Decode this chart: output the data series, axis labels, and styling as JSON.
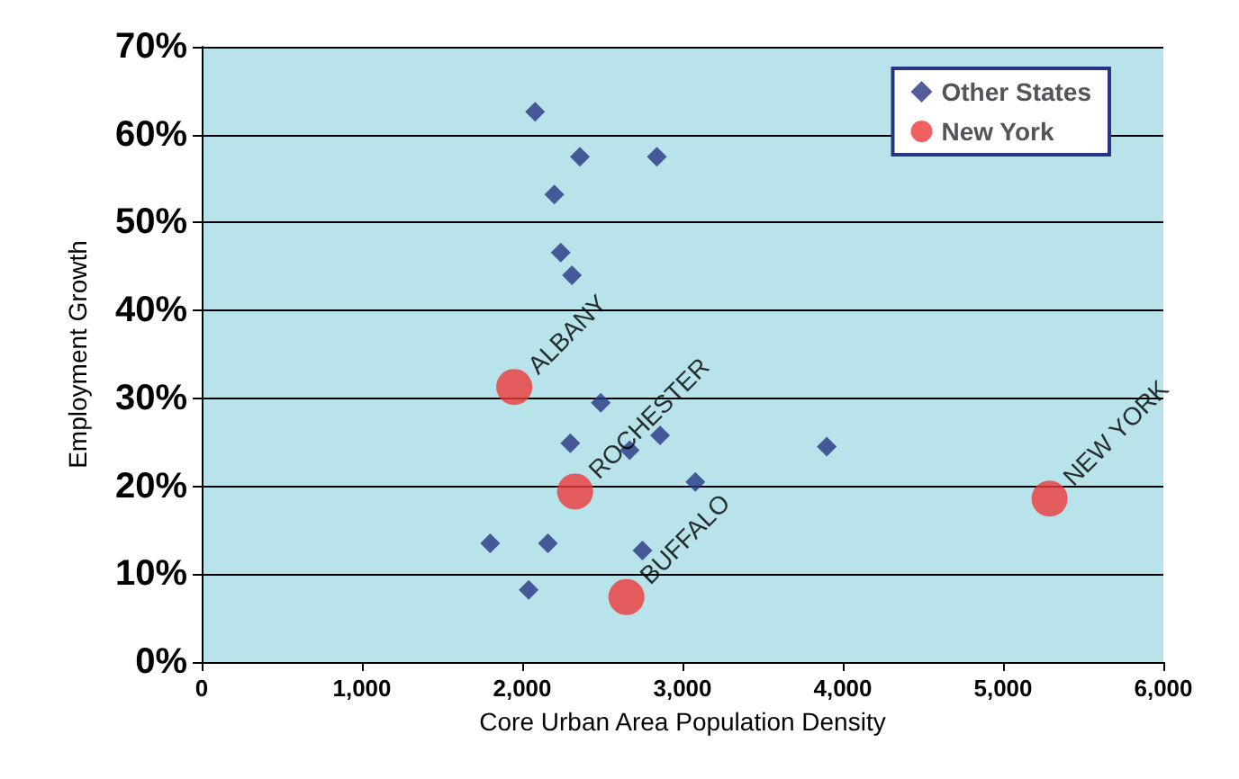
{
  "chart_data": {
    "type": "scatter",
    "xlabel": "Core Urban Area Population Density",
    "ylabel": "Employment Growth",
    "xlim": [
      0,
      6000
    ],
    "xticks": [
      {
        "value": 0,
        "label": "0"
      },
      {
        "value": 1000,
        "label": "1,000"
      },
      {
        "value": 2000,
        "label": "2,000"
      },
      {
        "value": 3000,
        "label": "3,000"
      },
      {
        "value": 4000,
        "label": "4,000"
      },
      {
        "value": 5000,
        "label": "5,000"
      },
      {
        "value": 6000,
        "label": "6,000"
      }
    ],
    "ylim": [
      0,
      70
    ],
    "yticks": [
      {
        "value": 0,
        "label": "0%"
      },
      {
        "value": 10,
        "label": "10%"
      },
      {
        "value": 20,
        "label": "20%"
      },
      {
        "value": 30,
        "label": "30%"
      },
      {
        "value": 40,
        "label": "40%"
      },
      {
        "value": 50,
        "label": "50%"
      },
      {
        "value": 60,
        "label": "60%"
      },
      {
        "value": 70,
        "label": "70%"
      }
    ],
    "grid": "y",
    "legend": "top right",
    "series": [
      {
        "name": "Other States",
        "color": "#283583",
        "marker": "diamond",
        "x": [
          2080,
          2360,
          2840,
          2200,
          2240,
          2310,
          2490,
          2300,
          2670,
          2860,
          3080,
          3900,
          1800,
          2160,
          2750,
          2040
        ],
        "values": [
          62.6,
          57.5,
          57.5,
          53.2,
          46.6,
          44.0,
          29.5,
          24.9,
          24.1,
          25.8,
          20.5,
          24.5,
          13.5,
          13.5,
          12.7,
          8.2
        ]
      },
      {
        "name": "New York",
        "color": "#ee3a3a",
        "marker": "circle",
        "x": [
          1950,
          2330,
          2650,
          5290
        ],
        "values": [
          31.3,
          19.4,
          7.4,
          18.6
        ],
        "value_labels": [
          "ALBANY",
          "ROCHESTER",
          "BUFFALO",
          "NEW YORK"
        ]
      }
    ]
  }
}
